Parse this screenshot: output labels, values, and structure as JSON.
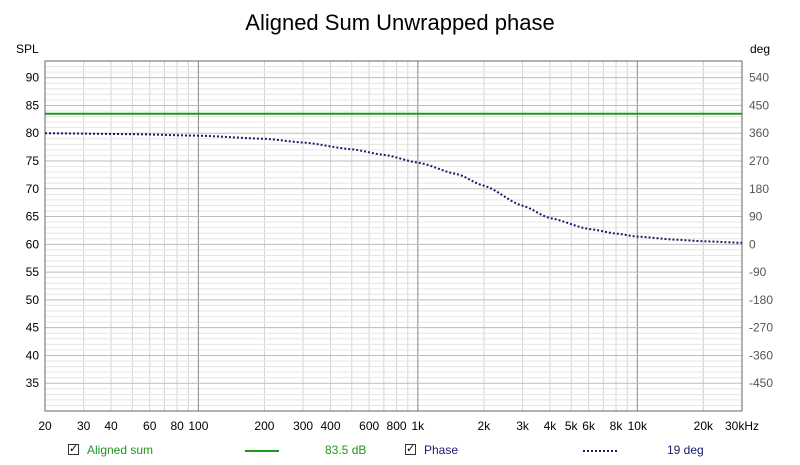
{
  "chart_data": {
    "type": "line",
    "title": "Aligned Sum Unwrapped phase",
    "left_axis_unit": "SPL",
    "right_axis_unit": "deg",
    "x_scale": "log",
    "xlim": [
      20,
      30000
    ],
    "ylim_left": [
      30,
      93
    ],
    "ylim_right": [
      -540,
      594
    ],
    "x_ticks": [
      {
        "v": 20,
        "label": "20"
      },
      {
        "v": 30,
        "label": "30"
      },
      {
        "v": 40,
        "label": "40"
      },
      {
        "v": 60,
        "label": "60"
      },
      {
        "v": 80,
        "label": "80"
      },
      {
        "v": 100,
        "label": "100"
      },
      {
        "v": 200,
        "label": "200"
      },
      {
        "v": 300,
        "label": "300"
      },
      {
        "v": 400,
        "label": "400"
      },
      {
        "v": 600,
        "label": "600"
      },
      {
        "v": 800,
        "label": "800"
      },
      {
        "v": 1000,
        "label": "1k"
      },
      {
        "v": 2000,
        "label": "2k"
      },
      {
        "v": 3000,
        "label": "3k"
      },
      {
        "v": 4000,
        "label": "4k"
      },
      {
        "v": 5000,
        "label": "5k"
      },
      {
        "v": 6000,
        "label": "6k"
      },
      {
        "v": 8000,
        "label": "8k"
      },
      {
        "v": 10000,
        "label": "10k"
      },
      {
        "v": 20000,
        "label": "20k"
      },
      {
        "v": 30000,
        "label": "30kHz"
      }
    ],
    "y_ticks_left": [
      35,
      40,
      45,
      50,
      55,
      60,
      65,
      70,
      75,
      80,
      85,
      90
    ],
    "y_ticks_right": [
      -450,
      -360,
      -270,
      -180,
      -90,
      0,
      90,
      180,
      270,
      360,
      450,
      540
    ],
    "series": [
      {
        "name": "Aligned sum",
        "axis": "left",
        "color": "#1a9a1a",
        "style": "solid",
        "x": [
          20,
          30000
        ],
        "y": [
          83.5,
          83.5
        ]
      },
      {
        "name": "Phase",
        "axis": "right",
        "color": "#1a1a6e",
        "style": "dotted",
        "x": [
          20,
          50,
          100,
          200,
          300,
          500,
          700,
          1000,
          1500,
          2000,
          3000,
          4000,
          6000,
          8000,
          10000,
          15000,
          20000,
          30000
        ],
        "y": [
          360,
          357,
          352,
          342,
          330,
          308,
          290,
          265,
          228,
          190,
          125,
          85,
          50,
          35,
          25,
          15,
          10,
          5
        ]
      }
    ]
  },
  "legend": {
    "items": [
      {
        "label": "Aligned sum",
        "value": "83.5 dB",
        "color": "#1a9a1a"
      },
      {
        "label": "Phase",
        "value": "19 deg",
        "color": "#1a1a6e"
      }
    ]
  }
}
